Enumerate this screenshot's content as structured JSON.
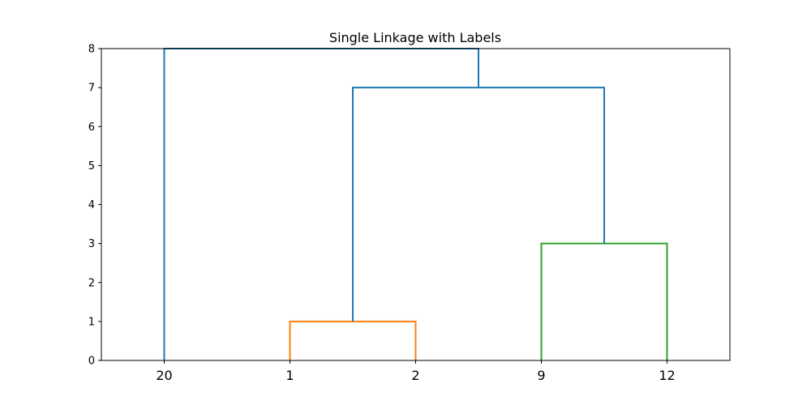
{
  "chart_data": {
    "type": "dendrogram",
    "title": "Single Linkage with Labels",
    "xlabel": "",
    "ylabel": "",
    "ylim": [
      0,
      8
    ],
    "yticks": [
      0,
      1,
      2,
      3,
      4,
      5,
      6,
      7,
      8
    ],
    "leaves": [
      "20",
      "1",
      "2",
      "9",
      "12"
    ],
    "grid": false,
    "links": [
      {
        "left": "1",
        "right": "2",
        "height": 1,
        "color": "#ff7f0e"
      },
      {
        "left": "9",
        "right": "12",
        "height": 3,
        "color": "#2ca02c"
      },
      {
        "left": "{1,2}",
        "right": "{9,12}",
        "height": 7,
        "color": "#1f77b4"
      },
      {
        "left": "20",
        "right": "{1,2,9,12}",
        "height": 8,
        "color": "#1f77b4"
      }
    ]
  }
}
